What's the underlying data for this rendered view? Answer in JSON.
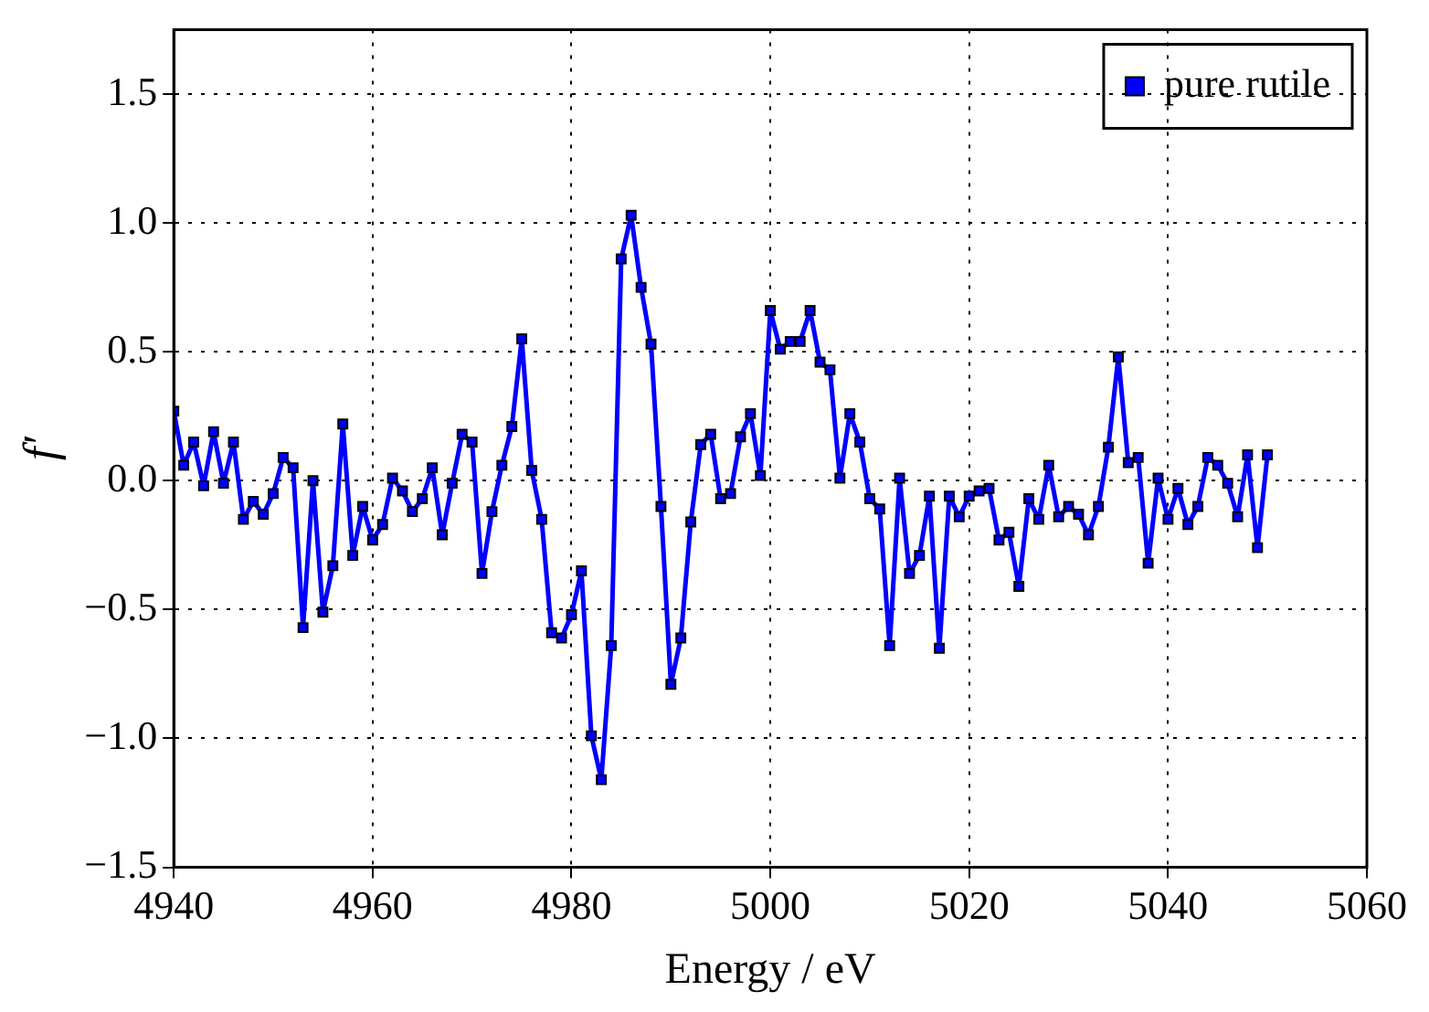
{
  "chart_data": {
    "type": "line",
    "xlabel": "Energy / eV",
    "ylabel": "f′",
    "xlim": [
      4940,
      5060
    ],
    "xticks": [
      4940,
      4960,
      4980,
      5000,
      5020,
      5040,
      5060
    ],
    "ylim": [
      -1.5,
      1.75
    ],
    "yticks": [
      {
        "value": -1.5,
        "label": "−1.5"
      },
      {
        "value": -1.0,
        "label": "−1.0"
      },
      {
        "value": -0.5,
        "label": "−0.5"
      },
      {
        "value": 0,
        "label": "0.0"
      },
      {
        "value": 0.5,
        "label": "0.5"
      },
      {
        "value": 1.0,
        "label": "1.0"
      },
      {
        "value": 1.5,
        "label": "1.5"
      }
    ],
    "grid": true,
    "legend": "top right",
    "marker": "square",
    "line_style": "solid",
    "x": [
      4940,
      4941,
      4942,
      4943,
      4944,
      4945,
      4946,
      4947,
      4948,
      4949,
      4950,
      4951,
      4952,
      4953,
      4954,
      4955,
      4956,
      4957,
      4958,
      4959,
      4960,
      4961,
      4962,
      4963,
      4964,
      4965,
      4966,
      4967,
      4968,
      4969,
      4970,
      4971,
      4972,
      4973,
      4974,
      4975,
      4976,
      4977,
      4978,
      4979,
      4980,
      4981,
      4982,
      4983,
      4984,
      4985,
      4986,
      4987,
      4988,
      4989,
      4990,
      4991,
      4992,
      4993,
      4994,
      4995,
      4996,
      4997,
      4998,
      4999,
      5000,
      5001,
      5002,
      5003,
      5004,
      5005,
      5006,
      5007,
      5008,
      5009,
      5010,
      5011,
      5012,
      5013,
      5014,
      5015,
      5016,
      5017,
      5018,
      5019,
      5020,
      5021,
      5022,
      5023,
      5024,
      5025,
      5026,
      5027,
      5028,
      5029,
      5030,
      5031,
      5032,
      5033,
      5034,
      5035,
      5036,
      5037,
      5038,
      5039,
      5040,
      5041,
      5042,
      5043,
      5044,
      5045,
      5046,
      5047,
      5048,
      5049,
      5050
    ],
    "series": [
      {
        "name": "pure rutile",
        "color": "#0000ff",
        "values": [
          0.27,
          0.06,
          0.15,
          -0.02,
          0.19,
          -0.01,
          0.15,
          -0.15,
          -0.08,
          -0.13,
          -0.05,
          0.09,
          0.05,
          -0.57,
          0.0,
          -0.51,
          -0.33,
          0.22,
          -0.29,
          -0.1,
          -0.23,
          -0.17,
          0.01,
          -0.04,
          -0.12,
          -0.07,
          0.05,
          -0.21,
          -0.01,
          0.18,
          0.15,
          -0.36,
          -0.12,
          0.06,
          0.21,
          0.55,
          0.04,
          -0.15,
          -0.59,
          -0.61,
          -0.52,
          -0.35,
          -0.99,
          -1.16,
          -0.64,
          0.86,
          1.03,
          0.75,
          0.53,
          -0.1,
          -0.79,
          -0.61,
          -0.16,
          0.14,
          0.18,
          -0.07,
          -0.05,
          0.17,
          0.26,
          0.02,
          0.66,
          0.51,
          0.54,
          0.54,
          0.66,
          0.46,
          0.43,
          0.01,
          0.26,
          0.15,
          -0.07,
          -0.11,
          -0.64,
          0.01,
          -0.36,
          -0.29,
          -0.06,
          -0.65,
          -0.06,
          -0.14,
          -0.06,
          -0.04,
          -0.03,
          -0.23,
          -0.2,
          -0.41,
          -0.07,
          -0.15,
          0.06,
          -0.14,
          -0.1,
          -0.13,
          -0.21,
          -0.1,
          0.13,
          0.48,
          0.07,
          0.09,
          -0.32,
          0.01,
          -0.15,
          -0.03,
          -0.17,
          -0.1,
          0.09,
          0.06,
          -0.01,
          -0.14,
          0.1,
          -0.26,
          0.1
        ]
      }
    ]
  }
}
